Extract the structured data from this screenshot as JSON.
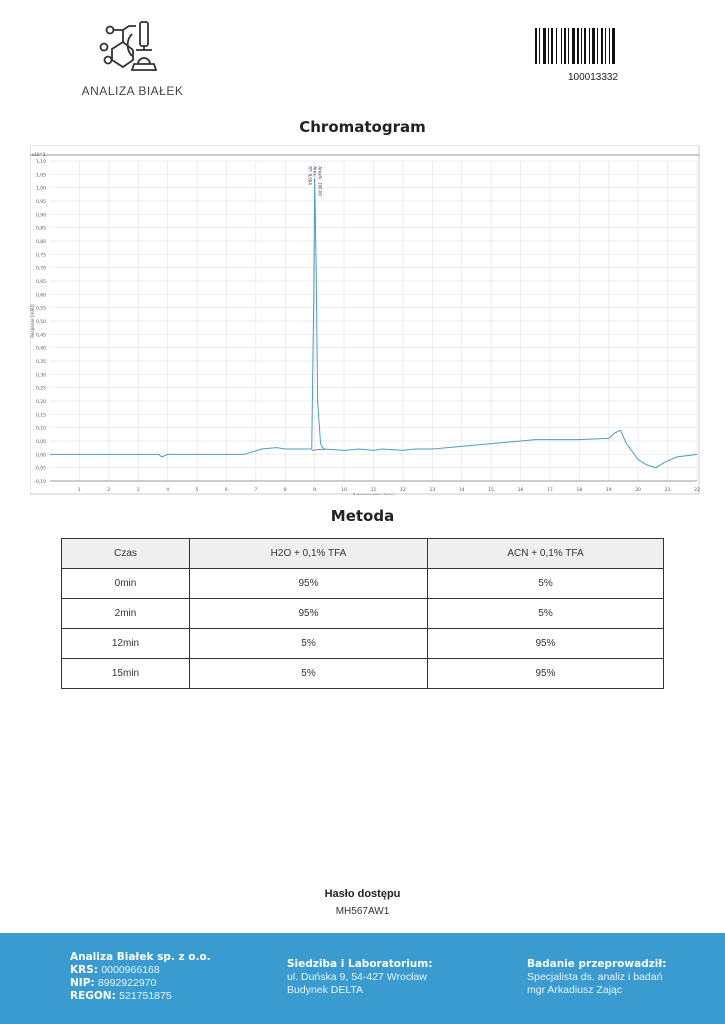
{
  "header": {
    "brand": "ANALIZA BIAŁEK",
    "barcode_number": "100013332"
  },
  "chromatogram": {
    "title": "Chromatogram"
  },
  "chart_data": {
    "type": "line",
    "title": "Chromatogram",
    "xlabel": "Retention time [min]",
    "ylabel": "Response [mAU]",
    "y_multiplier": "x10^3",
    "xlim": [
      0,
      22
    ],
    "ylim": [
      -0.1,
      1.1
    ],
    "x_ticks": [
      1,
      2,
      3,
      4,
      5,
      6,
      7,
      8,
      9,
      10,
      11,
      12,
      13,
      14,
      15,
      16,
      17,
      18,
      19,
      20,
      21,
      22
    ],
    "y_ticks": [
      "1,10",
      "1,05",
      "1,00",
      "0,95",
      "0,90",
      "0,85",
      "0,80",
      "0,75",
      "0,70",
      "0,65",
      "0,60",
      "0,55",
      "0,50",
      "0,45",
      "0,40",
      "0,35",
      "0,30",
      "0,25",
      "0,20",
      "0,15",
      "0,10",
      "0,05",
      "0,00",
      "-0,05",
      "-0,10"
    ],
    "grid": true,
    "color": "#4a9cc7",
    "peak_annotation": [
      "RT: 9,004",
      "Area: —",
      "Area%: 100,00"
    ],
    "series": [
      {
        "x": [
          0,
          1,
          2,
          3,
          3.7,
          3.8,
          4,
          5,
          6,
          6.6,
          6.9,
          7.2,
          7.7,
          8,
          8.5,
          8.9,
          8.97,
          9.0,
          9.05,
          9.1,
          9.2,
          9.3,
          10,
          10.5,
          11,
          11.3,
          12,
          12.4,
          13,
          14,
          15,
          16,
          16.5,
          17,
          18,
          19,
          19.2,
          19.4,
          19.6,
          20,
          20.3,
          20.6,
          20.9,
          21.3,
          22
        ],
        "y": [
          0,
          0,
          0,
          0,
          0,
          -0.01,
          0,
          0,
          0,
          0,
          0.01,
          0.02,
          0.025,
          0.02,
          0.02,
          0.02,
          0.6,
          1.035,
          0.7,
          0.2,
          0.04,
          0.02,
          0.015,
          0.02,
          0.015,
          0.02,
          0.015,
          0.02,
          0.02,
          0.03,
          0.04,
          0.05,
          0.055,
          0.055,
          0.055,
          0.06,
          0.08,
          0.09,
          0.04,
          -0.02,
          -0.04,
          -0.05,
          -0.03,
          -0.01,
          0
        ]
      }
    ]
  },
  "method": {
    "title": "Metoda",
    "headers": [
      "Czas",
      "H2O + 0,1% TFA",
      "ACN + 0,1% TFA"
    ],
    "rows": [
      [
        "0min",
        "95%",
        "5%"
      ],
      [
        "2min",
        "95%",
        "5%"
      ],
      [
        "12min",
        "5%",
        "95%"
      ],
      [
        "15min",
        "5%",
        "95%"
      ]
    ]
  },
  "password": {
    "label": "Hasło dostępu",
    "value": "MH567AW1"
  },
  "footer": {
    "company": "Analiza Białek sp. z o.o.",
    "krs_label": "KRS:",
    "krs": "0000966168",
    "nip_label": "NIP:",
    "nip": "8992922970",
    "regon_label": "REGON:",
    "regon": "521751875",
    "hq_label": "Siedziba i Laboratorium:",
    "hq_line1": "ul. Duńska 9, 54-427 Wrocław",
    "hq_line2": "Budynek DELTA",
    "by_label": "Badanie przeprowadził:",
    "by_line1": "Specjalista ds. analiz i badań",
    "by_line2": "mgr Arkadiusz Zając"
  }
}
